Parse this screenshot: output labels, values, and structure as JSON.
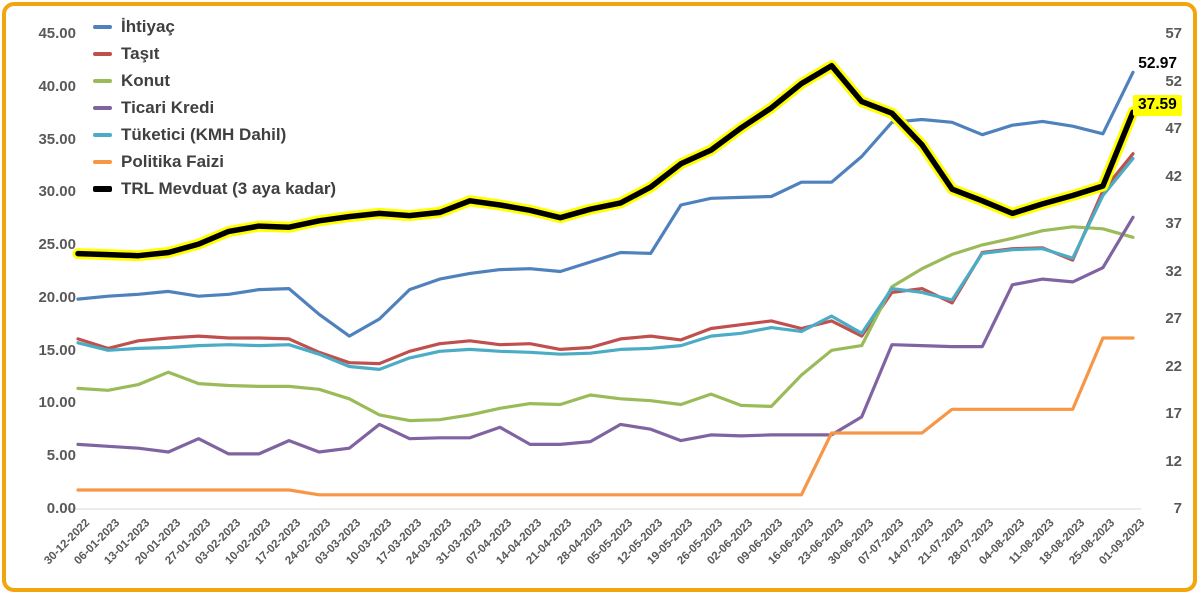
{
  "frame": {
    "border_color": "#F2A50C",
    "background": "#FFFFFF"
  },
  "legend": {
    "items": [
      {
        "label": "İhtiyaç",
        "color": "#4F81BD",
        "swatch_height": 4
      },
      {
        "label": "Taşıt",
        "color": "#C0504D",
        "swatch_height": 4
      },
      {
        "label": "Konut",
        "color": "#9BBB59",
        "swatch_height": 4
      },
      {
        "label": "Ticari Kredi",
        "color": "#8064A2",
        "swatch_height": 4
      },
      {
        "label": "Tüketici (KMH Dahil)",
        "color": "#4BACC6",
        "swatch_height": 4
      },
      {
        "label": "Politika Faizi",
        "color": "#F79646",
        "swatch_height": 4
      },
      {
        "label": "TRL Mevduat (3 aya kadar)",
        "color": "#000000",
        "swatch_height": 6
      }
    ]
  },
  "annotations": {
    "ihtiyac_end_label": "52.97",
    "trl_mevduat_end_label": "37.59",
    "highlight_color": "#FFFF00"
  },
  "chart_data": {
    "type": "line",
    "grid": "bottom-line-only",
    "legend_position": "top-left",
    "axis_label_color": "#595959",
    "gridline_color": "#D9D9D9",
    "left_axis": {
      "min": 0,
      "max": 45,
      "tick_labels": [
        "45.00",
        "40.00",
        "35.00",
        "30.00",
        "25.00",
        "20.00",
        "15.00",
        "10.00",
        "5.00",
        "0.00"
      ],
      "tick_values": [
        45,
        40,
        35,
        30,
        25,
        20,
        15,
        10,
        5,
        0
      ]
    },
    "right_axis": {
      "min": 7,
      "max": 57,
      "tick_labels": [
        "57",
        "52",
        "47",
        "42",
        "37",
        "32",
        "27",
        "22",
        "17",
        "12",
        "7"
      ],
      "tick_values": [
        57,
        52,
        47,
        42,
        37,
        32,
        27,
        22,
        17,
        12,
        7
      ]
    },
    "categories": [
      "30-12-2022",
      "06-01-2023",
      "13-01-2023",
      "20-01-2023",
      "27-01-2023",
      "03-02-2023",
      "10-02-2023",
      "17-02-2023",
      "24-02-2023",
      "03-03-2023",
      "10-03-2023",
      "17-03-2023",
      "24-03-2023",
      "31-03-2023",
      "07-04-2023",
      "14-04-2023",
      "21-04-2023",
      "28-04-2023",
      "05-05-2023",
      "12-05-2023",
      "19-05-2023",
      "26-05-2023",
      "02-06-2023",
      "09-06-2023",
      "16-06-2023",
      "23-06-2023",
      "30-06-2023",
      "07-07-2023",
      "14-07-2023",
      "21-07-2023",
      "28-07-2023",
      "04-08-2023",
      "11-08-2023",
      "18-08-2023",
      "25-08-2023",
      "01-09-2023"
    ],
    "series": [
      {
        "name": "İhtiyaç",
        "color": "#4F81BD",
        "axis": "right",
        "width": 3.2,
        "values": [
          29.1,
          29.4,
          29.6,
          29.9,
          29.4,
          29.6,
          30.1,
          30.2,
          27.5,
          25.2,
          27.0,
          30.1,
          31.2,
          31.8,
          32.2,
          32.3,
          32.0,
          33.0,
          34.0,
          33.9,
          39.0,
          39.7,
          39.8,
          39.9,
          41.4,
          41.4,
          44.1,
          47.7,
          48.0,
          47.7,
          46.4,
          47.4,
          47.8,
          47.3,
          46.5,
          52.97
        ]
      },
      {
        "name": "Taşıt",
        "color": "#C0504D",
        "axis": "right",
        "width": 3.2,
        "values": [
          24.9,
          23.9,
          24.7,
          25.0,
          25.2,
          25.0,
          25.0,
          24.9,
          23.5,
          22.4,
          22.3,
          23.6,
          24.4,
          24.7,
          24.3,
          24.4,
          23.8,
          24.0,
          24.9,
          25.2,
          24.8,
          26.0,
          26.4,
          26.8,
          26.0,
          26.8,
          25.2,
          29.8,
          30.2,
          28.7,
          34.0,
          34.4,
          34.5,
          33.2,
          40.5,
          44.4
        ]
      },
      {
        "name": "Konut",
        "color": "#9BBB59",
        "axis": "right",
        "width": 3.2,
        "values": [
          19.7,
          19.5,
          20.1,
          21.4,
          20.2,
          20.0,
          19.9,
          19.9,
          19.6,
          18.6,
          16.9,
          16.3,
          16.4,
          16.9,
          17.6,
          18.1,
          18.0,
          19.0,
          18.6,
          18.4,
          18.0,
          19.1,
          17.9,
          17.8,
          21.1,
          23.7,
          24.2,
          30.4,
          32.3,
          33.8,
          34.8,
          35.5,
          36.3,
          36.7,
          36.5,
          35.6
        ]
      },
      {
        "name": "Ticari Kredi",
        "color": "#8064A2",
        "axis": "right",
        "width": 3.2,
        "values": [
          13.8,
          13.6,
          13.4,
          13.0,
          14.4,
          12.8,
          12.8,
          14.2,
          13.0,
          13.4,
          15.9,
          14.4,
          14.5,
          14.5,
          15.6,
          13.8,
          13.8,
          14.1,
          15.9,
          15.4,
          14.2,
          14.8,
          14.7,
          14.8,
          14.8,
          14.8,
          16.7,
          24.3,
          24.2,
          24.1,
          24.1,
          30.6,
          31.2,
          30.9,
          32.4,
          37.7
        ]
      },
      {
        "name": "Tüketici (KMH Dahil)",
        "color": "#4BACC6",
        "axis": "right",
        "width": 3.2,
        "values": [
          24.5,
          23.7,
          23.9,
          24.0,
          24.2,
          24.3,
          24.2,
          24.3,
          23.3,
          22.0,
          21.7,
          22.9,
          23.6,
          23.8,
          23.6,
          23.5,
          23.3,
          23.4,
          23.8,
          23.9,
          24.2,
          25.2,
          25.5,
          26.1,
          25.7,
          27.3,
          25.5,
          30.2,
          29.8,
          29.0,
          33.9,
          34.3,
          34.4,
          33.4,
          40.0,
          43.9
        ]
      },
      {
        "name": "Politika Faizi",
        "color": "#F79646",
        "axis": "right",
        "width": 3.2,
        "values": [
          9,
          9,
          9,
          9,
          9,
          9,
          9,
          9,
          8.5,
          8.5,
          8.5,
          8.5,
          8.5,
          8.5,
          8.5,
          8.5,
          8.5,
          8.5,
          8.5,
          8.5,
          8.5,
          8.5,
          8.5,
          8.5,
          8.5,
          15,
          15,
          15,
          15,
          17.5,
          17.5,
          17.5,
          17.5,
          17.5,
          25,
          25
        ]
      },
      {
        "name": "TRL Mevduat (3 aya kadar)",
        "color": "#000000",
        "axis": "left",
        "width": 5.5,
        "halo": "#FFFF00",
        "values": [
          24.2,
          24.1,
          24.0,
          24.3,
          25.1,
          26.3,
          26.8,
          26.7,
          27.3,
          27.7,
          28.0,
          27.8,
          28.1,
          29.2,
          28.8,
          28.3,
          27.6,
          28.4,
          29.0,
          30.5,
          32.7,
          34.0,
          36.1,
          38.0,
          40.3,
          42.0,
          38.6,
          37.5,
          34.5,
          30.3,
          29.2,
          28.0,
          28.9,
          29.7,
          30.6,
          37.59
        ]
      }
    ]
  }
}
